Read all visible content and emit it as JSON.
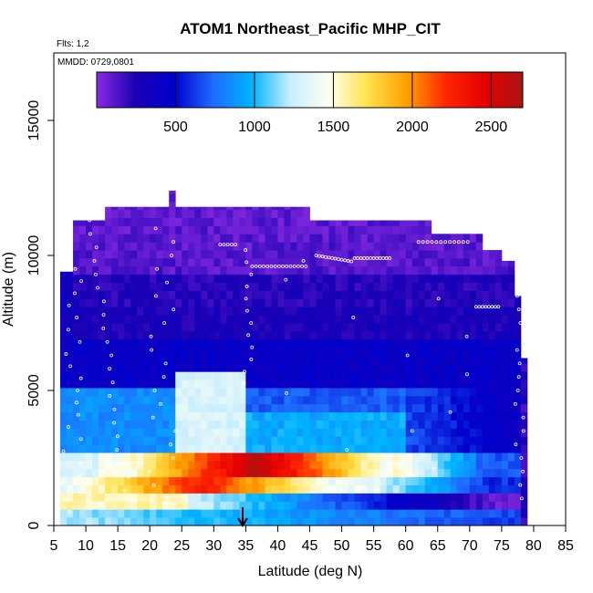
{
  "chart_data": {
    "type": "heatmap",
    "title": "ATOM1 Northeast_Pacific MHP_CIT",
    "flights_label": "Flts: 1,2",
    "dates_label": "MMDD: 0729,0801",
    "xlabel": "Latitude (deg N)",
    "ylabel": "Altitude (m)",
    "xlim": [
      5,
      85
    ],
    "ylim": [
      0,
      17500
    ],
    "x_ticks": [
      "5",
      "10",
      "15",
      "20",
      "25",
      "30",
      "35",
      "40",
      "45",
      "50",
      "55",
      "60",
      "65",
      "70",
      "75",
      "80",
      "85"
    ],
    "y_ticks": [
      "0",
      "5000",
      "10000",
      "15000"
    ],
    "colorbar": {
      "min": 0,
      "max": 2700,
      "ticks": [
        "500",
        "1000",
        "1500",
        "2000",
        "2500"
      ],
      "tick_values": [
        500,
        1000,
        1500,
        2000,
        2500
      ],
      "colors": [
        "#8a2be2",
        "#1a00b4",
        "#0000cd",
        "#1e6bff",
        "#00b4ff",
        "#c8eeff",
        "#fffff0",
        "#ffe14b",
        "#ffa000",
        "#ff2800",
        "#e60000",
        "#aa1414"
      ],
      "placement": "top-inside"
    },
    "grid": false,
    "arrow_marker": {
      "latitude": 35,
      "altitude": 0
    },
    "aircraft_altitude_band": "cyan-white dotted flight track points"
  }
}
